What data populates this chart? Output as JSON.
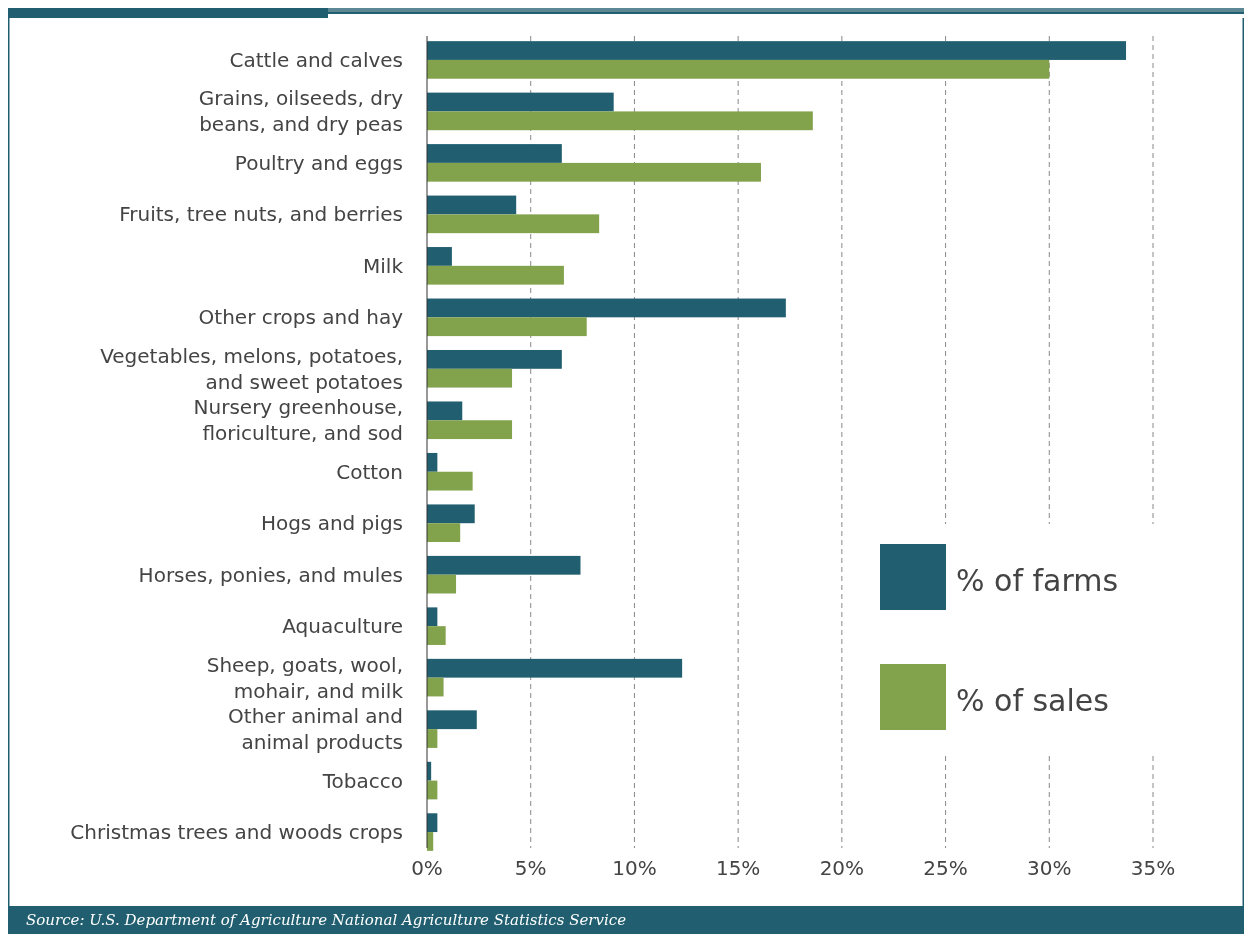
{
  "chart_data": {
    "type": "bar",
    "orientation": "horizontal",
    "categories": [
      "Cattle and calves",
      "Grains, oilseeds, dry beans, and dry peas",
      "Poultry and eggs",
      "Fruits, tree nuts, and berries",
      "Milk",
      "Other crops and hay",
      "Vegetables, melons, potatoes, and sweet potatoes",
      "Nursery greenhouse, floriculture, and sod",
      "Cotton",
      "Hogs and pigs",
      "Horses, ponies, and mules",
      "Aquaculture",
      "Sheep, goats, wool, mohair, and milk",
      "Other animal and animal products",
      "Tobacco",
      "Christmas trees and woods crops"
    ],
    "series": [
      {
        "name": "% of farms",
        "color": "#215f70",
        "values": [
          33.7,
          9.0,
          6.5,
          4.3,
          1.2,
          17.3,
          6.5,
          1.7,
          0.5,
          2.3,
          7.4,
          0.5,
          12.3,
          2.4,
          0.2,
          0.5
        ]
      },
      {
        "name": "% of sales",
        "color": "#82a24c",
        "values": [
          30.0,
          18.6,
          16.1,
          8.3,
          6.6,
          7.7,
          4.1,
          4.1,
          2.2,
          1.6,
          1.4,
          0.9,
          0.8,
          0.5,
          0.5,
          0.3
        ]
      }
    ],
    "xlim": [
      0,
      35
    ],
    "xticks": [
      {
        "value": 0,
        "label": "0%"
      },
      {
        "value": 5,
        "label": "5%"
      },
      {
        "value": 10,
        "label": "10%"
      },
      {
        "value": 15,
        "label": "15%"
      },
      {
        "value": 20,
        "label": "20%"
      },
      {
        "value": 25,
        "label": "25%"
      },
      {
        "value": 30,
        "label": "30%"
      },
      {
        "value": 35,
        "label": "35%"
      }
    ],
    "grid": "x",
    "legend": "bottom right",
    "annotations": [
      "Source: U.S.  Department of Agriculture National Agriculture Statistics Service"
    ]
  }
}
